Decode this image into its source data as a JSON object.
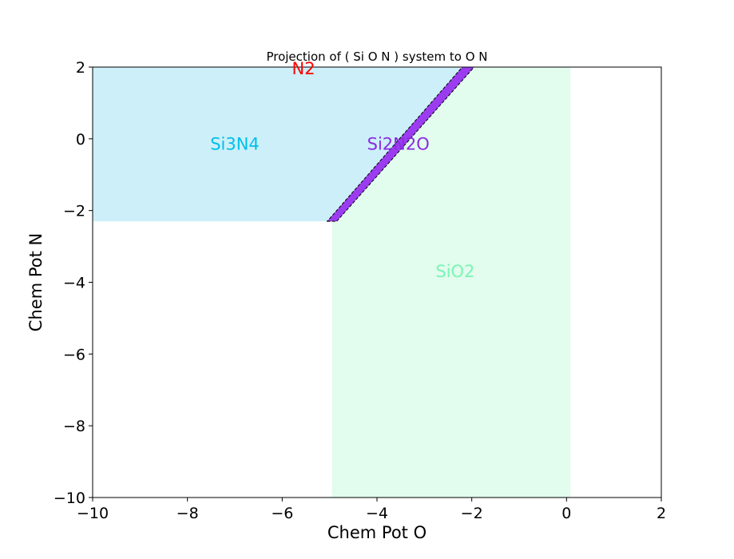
{
  "chart_data": {
    "type": "area",
    "title": "Projection of ( Si O N ) system to O N",
    "xlabel": "Chem Pot O",
    "ylabel": "Chem Pot N",
    "xlim": [
      -10,
      2
    ],
    "ylim": [
      -10,
      2
    ],
    "xticks": [
      -10,
      -8,
      -6,
      -4,
      -2,
      0,
      2
    ],
    "yticks": [
      -10,
      -8,
      -6,
      -4,
      -2,
      0,
      2
    ],
    "xtick_labels": [
      "−10",
      "−8",
      "−6",
      "−4",
      "−2",
      "0",
      "2"
    ],
    "ytick_labels": [
      "−10",
      "−8",
      "−6",
      "−4",
      "−2",
      "0",
      "2"
    ],
    "grid": false,
    "regions": [
      {
        "name": "Si3N4",
        "color": "#00bfea",
        "fill": "#cdeff9",
        "polygon": [
          [
            -10,
            -2.3
          ],
          [
            -4.95,
            -2.3
          ],
          [
            -2.1,
            2
          ],
          [
            -10,
            2
          ]
        ],
        "label_pos": [
          -7.0,
          -0.15
        ]
      },
      {
        "name": "SiO2",
        "color": "#7af5b4",
        "fill": "#e2fcee",
        "polygon": [
          [
            -4.95,
            -10
          ],
          [
            0.08,
            -10
          ],
          [
            0.08,
            2
          ],
          [
            -2.0,
            2
          ],
          [
            -4.95,
            -2.3
          ]
        ],
        "label_pos": [
          -2.35,
          -3.7
        ]
      },
      {
        "name": "Si2N2O",
        "color": "#8a2be2",
        "fill": "#9b3cf0",
        "polygon": [
          [
            -5.05,
            -2.3
          ],
          [
            -4.85,
            -2.3
          ],
          [
            -1.95,
            2
          ],
          [
            -2.2,
            2
          ]
        ],
        "label_pos": [
          -3.55,
          -0.15
        ]
      },
      {
        "name": "N2",
        "color": "#ff0000",
        "fill": "none",
        "polygon": [],
        "label_pos": [
          -5.55,
          1.95
        ]
      }
    ]
  }
}
